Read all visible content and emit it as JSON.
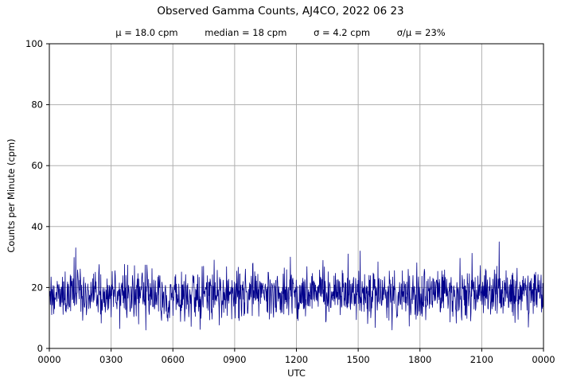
{
  "header": {
    "title": "Observed Gamma Counts, AJ4CO, 2022 06 23",
    "stats": [
      "μ = 18.0 cpm",
      "median = 18 cpm",
      "σ = 4.2 cpm",
      "σ/μ = 23%"
    ]
  },
  "axes": {
    "ylabel": "Counts per Minute (cpm)",
    "xlabel": "UTC"
  },
  "chart_data": {
    "type": "line",
    "title": "Observed Gamma Counts, AJ4CO, 2022 06 23",
    "subtitle": "μ = 18.0 cpm     median = 18 cpm     σ = 4.2 cpm     σ/μ = 23%",
    "xlabel": "UTC",
    "ylabel": "Counts per Minute (cpm)",
    "ylim": [
      0,
      100
    ],
    "yticks": [
      0,
      20,
      40,
      60,
      80,
      100
    ],
    "xtick_labels": [
      "0000",
      "0300",
      "0600",
      "0900",
      "1200",
      "1500",
      "1800",
      "2100",
      "0000"
    ],
    "x_span_hours": 24,
    "grid": true,
    "legend": "none",
    "line_color": "#00008b",
    "grid_color": "#b0b0b0",
    "stats": {
      "mean_cpm": 18.0,
      "median_cpm": 18,
      "sigma_cpm": 4.2,
      "sigma_over_mu_pct": 23
    },
    "series": {
      "name": "Observed gamma counts",
      "n_points": 1440,
      "sample_interval_minutes": 1,
      "distribution": "normal",
      "mean": 18.0,
      "std": 4.2,
      "min_observed": 6,
      "max_observed": 35,
      "seed": 20220623
    },
    "peaks": [
      {
        "minute": 205,
        "value": 6.5
      },
      {
        "minute": 480,
        "value": 29
      },
      {
        "minute": 870,
        "value": 31
      },
      {
        "minute": 1310,
        "value": 35
      },
      {
        "minute": 1395,
        "value": 7
      }
    ]
  }
}
